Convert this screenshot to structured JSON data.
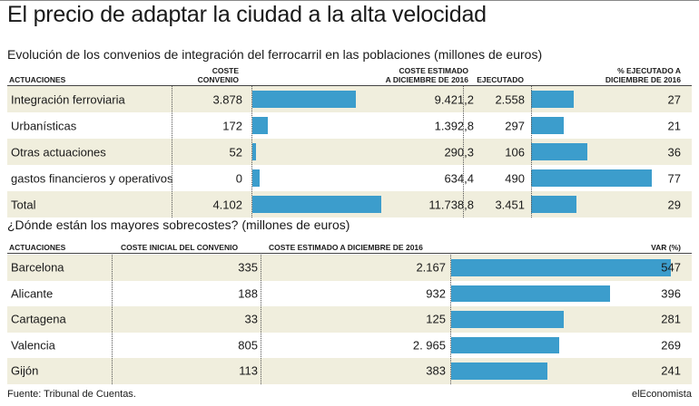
{
  "title": "El precio de adaptar la ciudad a la alta velocidad",
  "subtitle1": "Evolución de los convenios de integración del ferrocarril en las poblaciones (millones de euros)",
  "subtitle2": "¿Dónde están los mayores sobrecostes? (millones de euros)",
  "footer_source": "Fuente: Tribunal de Cuentas.",
  "footer_brand": "elEconomista",
  "colors": {
    "bar": "#3c9dcc",
    "shade": "#f0eedd"
  },
  "table1": {
    "headers": {
      "actuaciones": "ACTUACIONES",
      "coste_convenio_1": "COSTE",
      "coste_convenio_2": "CONVENIO",
      "coste_estimado_1": "COSTE ESTIMADO",
      "coste_estimado_2": "A DICIEMBRE DE 2016",
      "ejecutado": "EJECUTADO",
      "pct_1": "% EJECUTADO A",
      "pct_2": "DICIEMBRE DE 2016"
    },
    "rows": [
      {
        "label": "Integración ferroviaria",
        "coste": "3.878",
        "estimado": "9.421,2",
        "estimado_value": 9421.2,
        "ejecutado": "2.558",
        "pct": "27",
        "pct_value": 27
      },
      {
        "label": "Urbanísticas",
        "coste": "172",
        "estimado": "1.392,8",
        "estimado_value": 1392.8,
        "ejecutado": "297",
        "pct": "21",
        "pct_value": 21
      },
      {
        "label": "Otras actuaciones",
        "coste": "52",
        "estimado": "290,3",
        "estimado_value": 290.3,
        "ejecutado": "106",
        "pct": "36",
        "pct_value": 36
      },
      {
        "label": "gastos financieros y operativos",
        "coste": "0",
        "estimado": "634,4",
        "estimado_value": 634.4,
        "ejecutado": "490",
        "pct": "77",
        "pct_value": 77
      },
      {
        "label": "Total",
        "coste": "4.102",
        "estimado": "11.738,8",
        "estimado_value": 11738.8,
        "ejecutado": "3.451",
        "pct": "29",
        "pct_value": 29
      }
    ]
  },
  "table2": {
    "headers": {
      "actuaciones": "ACTUACIONES",
      "coste_inicial": "COSTE INICIAL DEL CONVENIO",
      "coste_estimado": "COSTE ESTIMADO A DICIEMBRE DE 2016",
      "var": "VAR (%)"
    },
    "rows": [
      {
        "label": "Barcelona",
        "inicial": "335",
        "estimado": "2.167",
        "var": "547",
        "var_value": 547
      },
      {
        "label": "Alicante",
        "inicial": "188",
        "estimado": "932",
        "var": "396",
        "var_value": 396
      },
      {
        "label": "Cartagena",
        "inicial": "33",
        "estimado": "125",
        "var": "281",
        "var_value": 281
      },
      {
        "label": "Valencia",
        "inicial": "805",
        "estimado": "2. 965",
        "var": "269",
        "var_value": 269
      },
      {
        "label": "Gijón",
        "inicial": "113",
        "estimado": "383",
        "var": "241",
        "var_value": 241
      }
    ]
  },
  "chart_data": [
    {
      "type": "bar",
      "title": "Evolución de los convenios de integración del ferrocarril en las poblaciones (millones de euros)",
      "categories": [
        "Integración ferroviaria",
        "Urbanísticas",
        "Otras actuaciones",
        "gastos financieros y operativos",
        "Total"
      ],
      "series": [
        {
          "name": "COSTE CONVENIO",
          "values": [
            3878,
            172,
            52,
            0,
            4102
          ]
        },
        {
          "name": "COSTE ESTIMADO A DICIEMBRE DE 2016",
          "values": [
            9421.2,
            1392.8,
            290.3,
            634.4,
            11738.8
          ]
        },
        {
          "name": "EJECUTADO",
          "values": [
            2558,
            297,
            106,
            490,
            3451
          ]
        },
        {
          "name": "% EJECUTADO A DICIEMBRE DE 2016",
          "values": [
            27,
            21,
            36,
            77,
            29
          ]
        }
      ]
    },
    {
      "type": "bar",
      "title": "¿Dónde están los mayores sobrecostes? (millones de euros)",
      "categories": [
        "Barcelona",
        "Alicante",
        "Cartagena",
        "Valencia",
        "Gijón"
      ],
      "series": [
        {
          "name": "COSTE INICIAL DEL CONVENIO",
          "values": [
            335,
            188,
            33,
            805,
            113
          ]
        },
        {
          "name": "COSTE ESTIMADO A DICIEMBRE DE 2016",
          "values": [
            2167,
            932,
            125,
            2965,
            383
          ]
        },
        {
          "name": "VAR (%)",
          "values": [
            547,
            396,
            281,
            269,
            241
          ]
        }
      ]
    }
  ]
}
